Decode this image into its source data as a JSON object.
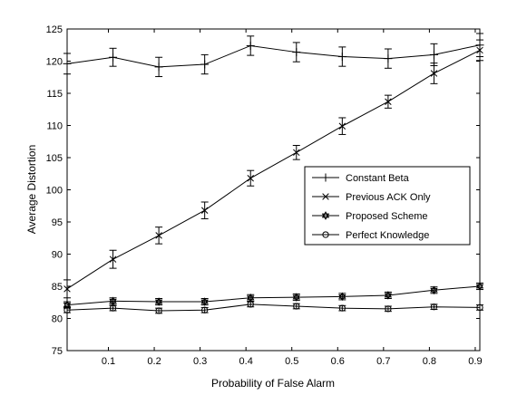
{
  "chart_data": {
    "type": "line",
    "xlabel": "Probability of False Alarm",
    "ylabel": "Average Distortion",
    "xlim": [
      0.01,
      0.91
    ],
    "ylim": [
      75,
      125
    ],
    "xticks": [
      0.1,
      0.2,
      0.3,
      0.4,
      0.5,
      0.6,
      0.7,
      0.8,
      0.9
    ],
    "xtick_labels": [
      "0.1",
      "0.2",
      "0.3",
      "0.4",
      "0.5",
      "0.6",
      "0.7",
      "0.8",
      "0.9"
    ],
    "yticks": [
      75,
      80,
      85,
      90,
      95,
      100,
      105,
      110,
      115,
      120,
      125
    ],
    "ytick_labels": [
      "75",
      "80",
      "85",
      "90",
      "95",
      "100",
      "105",
      "110",
      "115",
      "120",
      "125"
    ],
    "grid": false,
    "legend_position": "right-center",
    "line_color": "#000000",
    "x": [
      0.01,
      0.11,
      0.21,
      0.31,
      0.41,
      0.51,
      0.61,
      0.71,
      0.81,
      0.91
    ],
    "series": [
      {
        "name": "Constant Beta",
        "marker": "plus",
        "values": [
          119.6,
          120.6,
          119.1,
          119.5,
          122.4,
          121.4,
          120.7,
          120.4,
          121.0,
          122.5
        ],
        "errors": [
          1.6,
          1.4,
          1.5,
          1.5,
          1.5,
          1.5,
          1.5,
          1.5,
          1.7,
          1.8
        ]
      },
      {
        "name": "Previous ACK Only",
        "marker": "x",
        "values": [
          84.6,
          89.2,
          92.9,
          96.8,
          101.8,
          105.8,
          109.9,
          113.7,
          118.1,
          121.7
        ],
        "errors": [
          1.4,
          1.4,
          1.3,
          1.3,
          1.2,
          1.1,
          1.3,
          1.0,
          1.6,
          1.6
        ]
      },
      {
        "name": "Proposed Scheme",
        "marker": "star",
        "values": [
          82.1,
          82.7,
          82.6,
          82.6,
          83.2,
          83.3,
          83.4,
          83.6,
          84.4,
          85.0
        ],
        "errors": [
          0.5,
          0.5,
          0.5,
          0.5,
          0.5,
          0.5,
          0.5,
          0.5,
          0.5,
          0.5
        ]
      },
      {
        "name": "Perfect Knowledge",
        "marker": "circle",
        "values": [
          81.3,
          81.6,
          81.2,
          81.3,
          82.2,
          81.9,
          81.6,
          81.5,
          81.8,
          81.7
        ],
        "errors": [
          0.4,
          0.4,
          0.4,
          0.4,
          0.4,
          0.4,
          0.4,
          0.4,
          0.4,
          0.4
        ]
      }
    ]
  }
}
